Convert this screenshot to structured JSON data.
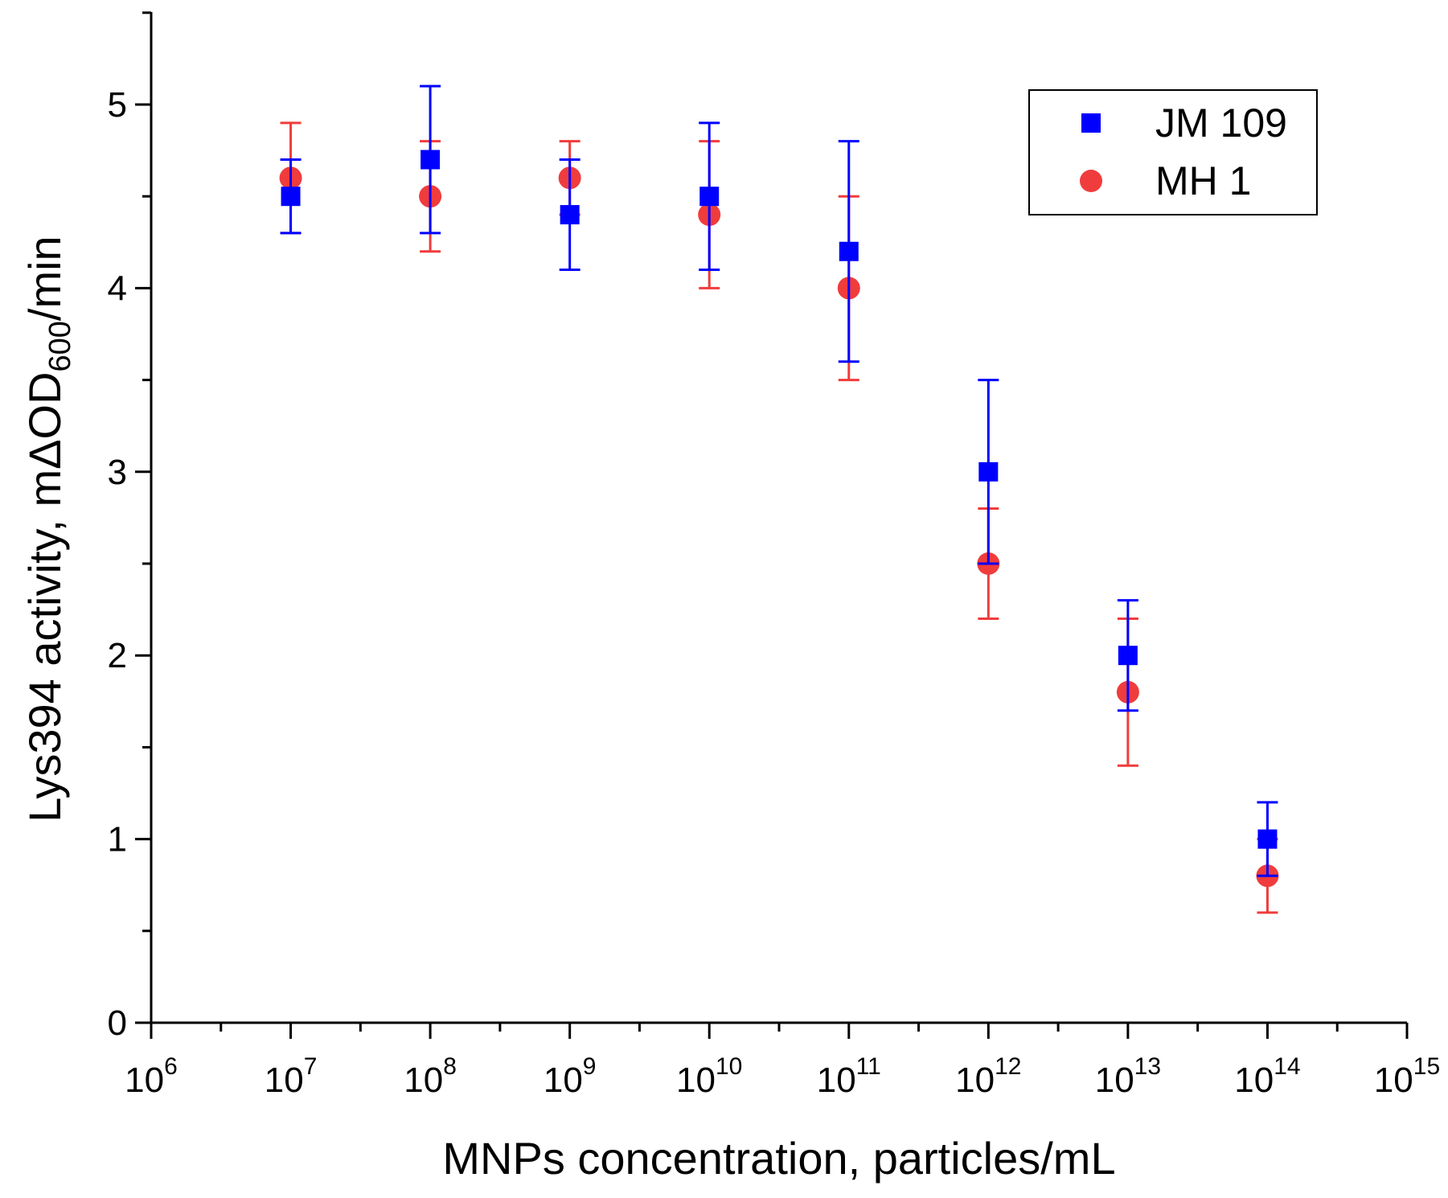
{
  "chart_data": {
    "type": "scatter",
    "x_scale": "log10",
    "xlabel": "MNPs concentration, particles/mL",
    "ylabel": {
      "prefix": "Lys394 activity, mΔOD",
      "subscript": "600",
      "suffix": "/min"
    },
    "xlim_exponent": [
      6,
      15
    ],
    "ylim": [
      0,
      5.5
    ],
    "x_ticks": [
      {
        "base": "10",
        "exp": "6"
      },
      {
        "base": "10",
        "exp": "7"
      },
      {
        "base": "10",
        "exp": "8"
      },
      {
        "base": "10",
        "exp": "9"
      },
      {
        "base": "10",
        "exp": "10"
      },
      {
        "base": "10",
        "exp": "11"
      },
      {
        "base": "10",
        "exp": "12"
      },
      {
        "base": "10",
        "exp": "13"
      },
      {
        "base": "10",
        "exp": "14"
      },
      {
        "base": "10",
        "exp": "15"
      }
    ],
    "y_ticks": [
      "0",
      "1",
      "2",
      "3",
      "4",
      "5"
    ],
    "legend_position": "top-right",
    "series": [
      {
        "name": "JM 109",
        "marker": "square",
        "color": "#0000ff",
        "x_exponent": [
          7,
          8,
          9,
          10,
          11,
          12,
          13,
          14
        ],
        "values": [
          4.5,
          4.7,
          4.4,
          4.5,
          4.2,
          3.0,
          2.0,
          1.0
        ],
        "error": [
          0.2,
          0.4,
          0.3,
          0.4,
          0.6,
          0.5,
          0.3,
          0.2
        ]
      },
      {
        "name": "MH 1",
        "marker": "circle",
        "color": "#f03c3c",
        "x_exponent": [
          7,
          8,
          9,
          10,
          11,
          12,
          13,
          14
        ],
        "values": [
          4.6,
          4.5,
          4.6,
          4.4,
          4.0,
          2.5,
          1.8,
          0.8
        ],
        "error": [
          0.3,
          0.3,
          0.2,
          0.4,
          0.5,
          0.3,
          0.4,
          0.2
        ]
      }
    ]
  }
}
